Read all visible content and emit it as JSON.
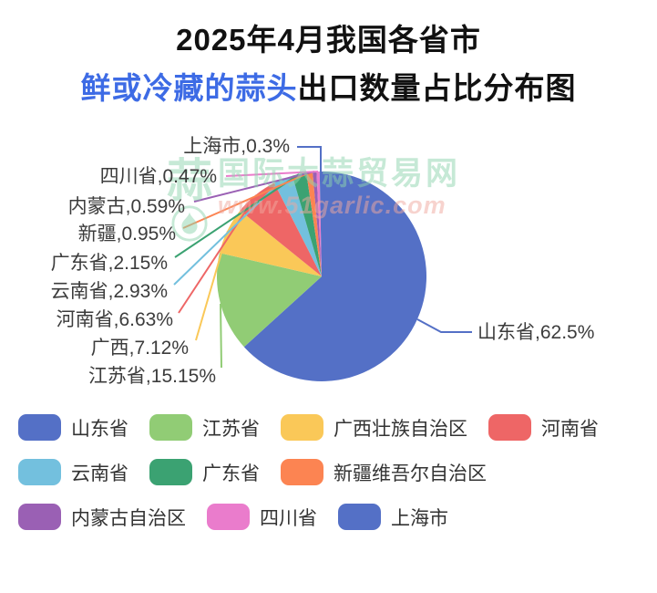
{
  "title": {
    "line1": "2025年4月我国各省市",
    "line2_highlight": "鲜或冷藏的蒜头",
    "line2_rest": "出口数量占比分布图",
    "highlight_color": "#3d6be5",
    "text_color": "#111111"
  },
  "watermark": {
    "brand": "国际大蒜贸易网",
    "url": "www.51garlic.com",
    "logo_char": "蒜",
    "green": "#8fd4ae",
    "pink": "#f0a89f"
  },
  "chart_data": {
    "type": "pie",
    "title": "2025年4月我国各省市鲜或冷藏的蒜头出口数量占比分布图",
    "unit": "%",
    "start_angle_deg": -90,
    "direction": "clockwise",
    "slices": [
      {
        "name": "山东省",
        "label": "山东省,62.5%",
        "value": 62.5,
        "color": "#5470c6"
      },
      {
        "name": "江苏省",
        "label": "江苏省,15.15%",
        "value": 15.15,
        "color": "#91cc75"
      },
      {
        "name": "广西",
        "label": "广西,7.12%",
        "value": 7.12,
        "color": "#fac858"
      },
      {
        "name": "河南省",
        "label": "河南省,6.63%",
        "value": 6.63,
        "color": "#ee6666"
      },
      {
        "name": "云南省",
        "label": "云南省,2.93%",
        "value": 2.93,
        "color": "#73c0de"
      },
      {
        "name": "广东省",
        "label": "广东省,2.15%",
        "value": 2.15,
        "color": "#3ba272"
      },
      {
        "name": "新疆",
        "label": "新疆,0.95%",
        "value": 0.95,
        "color": "#fc8452"
      },
      {
        "name": "内蒙古",
        "label": "内蒙古,0.59%",
        "value": 0.59,
        "color": "#9a60b4"
      },
      {
        "name": "四川省",
        "label": "四川省,0.47%",
        "value": 0.47,
        "color": "#ea7ccc"
      },
      {
        "name": "上海市",
        "label": "上海市,0.3%",
        "value": 0.3,
        "color": "#5470c6"
      }
    ],
    "legend_position": "bottom",
    "legend_rows": [
      [
        {
          "label": "山东省",
          "color": "#5470c6"
        },
        {
          "label": "江苏省",
          "color": "#91cc75"
        },
        {
          "label": "广西壮族自治区",
          "color": "#fac858"
        },
        {
          "label": "河南省",
          "color": "#ee6666"
        }
      ],
      [
        {
          "label": "云南省",
          "color": "#73c0de"
        },
        {
          "label": "广东省",
          "color": "#3ba272"
        },
        {
          "label": "新疆维吾尔自治区",
          "color": "#fc8452"
        }
      ],
      [
        {
          "label": "内蒙古自治区",
          "color": "#9a60b4"
        },
        {
          "label": "四川省",
          "color": "#ea7ccc"
        },
        {
          "label": "上海市",
          "color": "#5470c6"
        }
      ]
    ]
  }
}
